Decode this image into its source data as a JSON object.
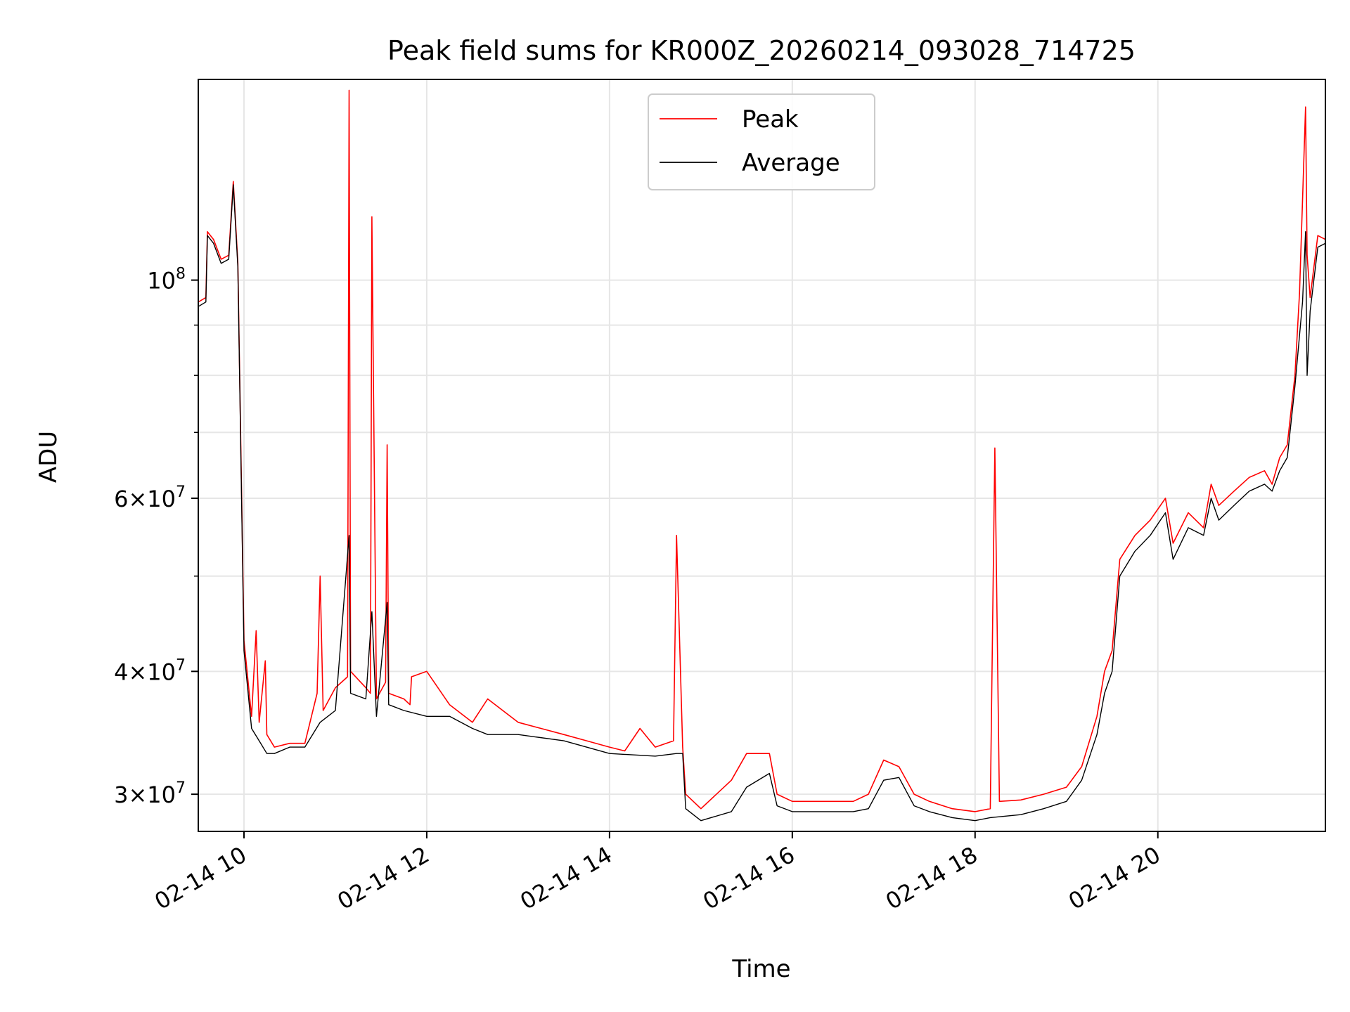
{
  "chart_data": {
    "type": "line",
    "title": "Peak field sums for KR000Z_20260214_093028_714725",
    "xlabel": "Time",
    "ylabel": "ADU",
    "yscale": "log",
    "xlim": [
      "2026-02-14T09:30",
      "2026-02-14T21:50"
    ],
    "ylim": [
      27500000,
      160000000
    ],
    "grid": true,
    "legend_position": "top-center",
    "x_ticks": [
      {
        "value": "2026-02-14T10:00",
        "label": "02-14 10"
      },
      {
        "value": "2026-02-14T12:00",
        "label": "02-14 12"
      },
      {
        "value": "2026-02-14T14:00",
        "label": "02-14 14"
      },
      {
        "value": "2026-02-14T16:00",
        "label": "02-14 16"
      },
      {
        "value": "2026-02-14T18:00",
        "label": "02-14 18"
      },
      {
        "value": "2026-02-14T20:00",
        "label": "02-14 20"
      }
    ],
    "y_major_ticks": [
      {
        "value": 30000000,
        "base": "3",
        "exp": "7"
      },
      {
        "value": 40000000,
        "base": "4",
        "exp": "7"
      },
      {
        "value": 60000000,
        "base": "6",
        "exp": "7"
      },
      {
        "value": 100000000,
        "base": "",
        "exp": "8"
      }
    ],
    "y_minor_grid": [
      50000000,
      70000000,
      80000000,
      90000000
    ],
    "series": [
      {
        "name": "Peak",
        "color": "#ff0000",
        "x": [
          "2026-02-14T09:30",
          "2026-02-14T09:35",
          "2026-02-14T09:36",
          "2026-02-14T09:40",
          "2026-02-14T09:45",
          "2026-02-14T09:50",
          "2026-02-14T09:53",
          "2026-02-14T09:56",
          "2026-02-14T10:00",
          "2026-02-14T10:05",
          "2026-02-14T10:08",
          "2026-02-14T10:10",
          "2026-02-14T10:14",
          "2026-02-14T10:15",
          "2026-02-14T10:20",
          "2026-02-14T10:30",
          "2026-02-14T10:40",
          "2026-02-14T10:48",
          "2026-02-14T10:50",
          "2026-02-14T10:52",
          "2026-02-14T11:00",
          "2026-02-14T11:08",
          "2026-02-14T11:09",
          "2026-02-14T11:10",
          "2026-02-14T11:20",
          "2026-02-14T11:23",
          "2026-02-14T11:24",
          "2026-02-14T11:27",
          "2026-02-14T11:33",
          "2026-02-14T11:34",
          "2026-02-14T11:35",
          "2026-02-14T11:45",
          "2026-02-14T11:49",
          "2026-02-14T11:50",
          "2026-02-14T12:00",
          "2026-02-14T12:15",
          "2026-02-14T12:30",
          "2026-02-14T12:40",
          "2026-02-14T13:00",
          "2026-02-14T13:15",
          "2026-02-14T13:30",
          "2026-02-14T13:45",
          "2026-02-14T14:00",
          "2026-02-14T14:10",
          "2026-02-14T14:20",
          "2026-02-14T14:30",
          "2026-02-14T14:42",
          "2026-02-14T14:44",
          "2026-02-14T14:48",
          "2026-02-14T14:50",
          "2026-02-14T15:00",
          "2026-02-14T15:20",
          "2026-02-14T15:30",
          "2026-02-14T15:45",
          "2026-02-14T15:50",
          "2026-02-14T16:00",
          "2026-02-14T16:20",
          "2026-02-14T16:40",
          "2026-02-14T16:50",
          "2026-02-14T17:00",
          "2026-02-14T17:10",
          "2026-02-14T17:20",
          "2026-02-14T17:30",
          "2026-02-14T17:45",
          "2026-02-14T18:00",
          "2026-02-14T18:10",
          "2026-02-14T18:13",
          "2026-02-14T18:16",
          "2026-02-14T18:30",
          "2026-02-14T18:45",
          "2026-02-14T19:00",
          "2026-02-14T19:10",
          "2026-02-14T19:20",
          "2026-02-14T19:25",
          "2026-02-14T19:30",
          "2026-02-14T19:35",
          "2026-02-14T19:45",
          "2026-02-14T19:55",
          "2026-02-14T20:05",
          "2026-02-14T20:10",
          "2026-02-14T20:20",
          "2026-02-14T20:30",
          "2026-02-14T20:35",
          "2026-02-14T20:40",
          "2026-02-14T20:50",
          "2026-02-14T21:00",
          "2026-02-14T21:10",
          "2026-02-14T21:15",
          "2026-02-14T21:20",
          "2026-02-14T21:25",
          "2026-02-14T21:30",
          "2026-02-14T21:33",
          "2026-02-14T21:37",
          "2026-02-14T21:38",
          "2026-02-14T21:40",
          "2026-02-14T21:45",
          "2026-02-14T21:50"
        ],
        "y": [
          95000000,
          96000000,
          112000000,
          110000000,
          105000000,
          106000000,
          126000000,
          104000000,
          43000000,
          36000000,
          44000000,
          35500000,
          41000000,
          34500000,
          33500000,
          33800000,
          33800000,
          38000000,
          50000000,
          36500000,
          38500000,
          39500000,
          156000000,
          40000000,
          38500000,
          38000000,
          116000000,
          37500000,
          39000000,
          68000000,
          38000000,
          37500000,
          37000000,
          39500000,
          40000000,
          37000000,
          35500000,
          37500000,
          35500000,
          35000000,
          34500000,
          34000000,
          33500000,
          33200000,
          35000000,
          33500000,
          34000000,
          55000000,
          33500000,
          30000000,
          29000000,
          31000000,
          33000000,
          33000000,
          30000000,
          29500000,
          29500000,
          29500000,
          30000000,
          32500000,
          32000000,
          30000000,
          29500000,
          29000000,
          28800000,
          29000000,
          67500000,
          29500000,
          29600000,
          30000000,
          30500000,
          32000000,
          36000000,
          40000000,
          42000000,
          52000000,
          55000000,
          57000000,
          60000000,
          54000000,
          58000000,
          56000000,
          62000000,
          59000000,
          61000000,
          63000000,
          64000000,
          62000000,
          66000000,
          68000000,
          80000000,
          97000000,
          150000000,
          106000000,
          96000000,
          111000000,
          110000000
        ]
      },
      {
        "name": "Average",
        "color": "#000000",
        "x": [
          "2026-02-14T09:30",
          "2026-02-14T09:35",
          "2026-02-14T09:36",
          "2026-02-14T09:40",
          "2026-02-14T09:45",
          "2026-02-14T09:50",
          "2026-02-14T09:53",
          "2026-02-14T09:56",
          "2026-02-14T10:00",
          "2026-02-14T10:05",
          "2026-02-14T10:10",
          "2026-02-14T10:15",
          "2026-02-14T10:20",
          "2026-02-14T10:30",
          "2026-02-14T10:40",
          "2026-02-14T10:50",
          "2026-02-14T11:00",
          "2026-02-14T11:09",
          "2026-02-14T11:10",
          "2026-02-14T11:20",
          "2026-02-14T11:24",
          "2026-02-14T11:27",
          "2026-02-14T11:34",
          "2026-02-14T11:35",
          "2026-02-14T11:45",
          "2026-02-14T12:00",
          "2026-02-14T12:15",
          "2026-02-14T12:30",
          "2026-02-14T12:40",
          "2026-02-14T13:00",
          "2026-02-14T13:30",
          "2026-02-14T14:00",
          "2026-02-14T14:30",
          "2026-02-14T14:44",
          "2026-02-14T14:48",
          "2026-02-14T14:50",
          "2026-02-14T15:00",
          "2026-02-14T15:20",
          "2026-02-14T15:30",
          "2026-02-14T15:45",
          "2026-02-14T15:50",
          "2026-02-14T16:00",
          "2026-02-14T16:20",
          "2026-02-14T16:40",
          "2026-02-14T16:50",
          "2026-02-14T17:00",
          "2026-02-14T17:10",
          "2026-02-14T17:20",
          "2026-02-14T17:30",
          "2026-02-14T17:45",
          "2026-02-14T18:00",
          "2026-02-14T18:10",
          "2026-02-14T18:30",
          "2026-02-14T18:45",
          "2026-02-14T19:00",
          "2026-02-14T19:10",
          "2026-02-14T19:20",
          "2026-02-14T19:25",
          "2026-02-14T19:30",
          "2026-02-14T19:35",
          "2026-02-14T19:45",
          "2026-02-14T19:55",
          "2026-02-14T20:05",
          "2026-02-14T20:10",
          "2026-02-14T20:20",
          "2026-02-14T20:30",
          "2026-02-14T20:35",
          "2026-02-14T20:40",
          "2026-02-14T20:50",
          "2026-02-14T21:00",
          "2026-02-14T21:10",
          "2026-02-14T21:15",
          "2026-02-14T21:20",
          "2026-02-14T21:25",
          "2026-02-14T21:30",
          "2026-02-14T21:35",
          "2026-02-14T21:37",
          "2026-02-14T21:38",
          "2026-02-14T21:40",
          "2026-02-14T21:45",
          "2026-02-14T21:50"
        ],
        "y": [
          94000000,
          95000000,
          111000000,
          109000000,
          104000000,
          105000000,
          125000000,
          103000000,
          42000000,
          35000000,
          34000000,
          33000000,
          33000000,
          33500000,
          33500000,
          35500000,
          36500000,
          55000000,
          38000000,
          37500000,
          46000000,
          36000000,
          47000000,
          37000000,
          36500000,
          36000000,
          36000000,
          35000000,
          34500000,
          34500000,
          34000000,
          33000000,
          32800000,
          33000000,
          33000000,
          29000000,
          28200000,
          28800000,
          30500000,
          31500000,
          29200000,
          28800000,
          28800000,
          28800000,
          29000000,
          31000000,
          31200000,
          29200000,
          28800000,
          28400000,
          28200000,
          28400000,
          28600000,
          29000000,
          29500000,
          31000000,
          34500000,
          38000000,
          40000000,
          50000000,
          53000000,
          55000000,
          58000000,
          52000000,
          56000000,
          55000000,
          60000000,
          57000000,
          59000000,
          61000000,
          62000000,
          61000000,
          64000000,
          66000000,
          78000000,
          95000000,
          112000000,
          80000000,
          93000000,
          108000000,
          109000000
        ]
      }
    ]
  }
}
